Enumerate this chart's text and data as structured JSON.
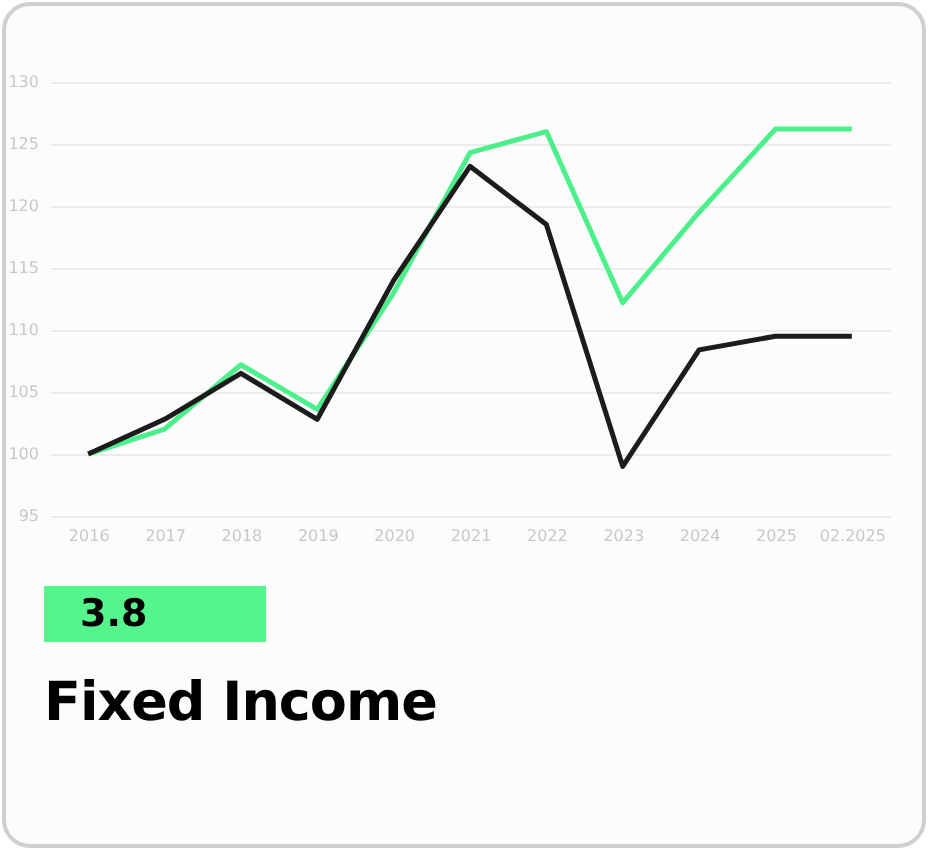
{
  "chart_data": {
    "type": "line",
    "title": "Fixed Income",
    "annotations": [
      "3.8"
    ],
    "categories": [
      "2016",
      "2017",
      "2018",
      "2019",
      "2020",
      "2021",
      "2022",
      "2023",
      "2024",
      "2025",
      "02.2025"
    ],
    "series": [
      {
        "color": "#4cf08a",
        "values": [
          100,
          102,
          107.2,
          103.6,
          113,
          124.3,
          126,
          112.2,
          119.5,
          126.2,
          126.2
        ]
      },
      {
        "color": "#1c1c1c",
        "values": [
          100,
          102.8,
          106.5,
          102.8,
          114,
          123.2,
          118.5,
          99,
          108.4,
          109.5,
          109.5
        ]
      }
    ],
    "ylim": [
      95,
      130
    ],
    "yticks": [
      95,
      100,
      105,
      110,
      115,
      120,
      125,
      130
    ],
    "grid": "y",
    "marker": "none",
    "line_style": "solid"
  }
}
